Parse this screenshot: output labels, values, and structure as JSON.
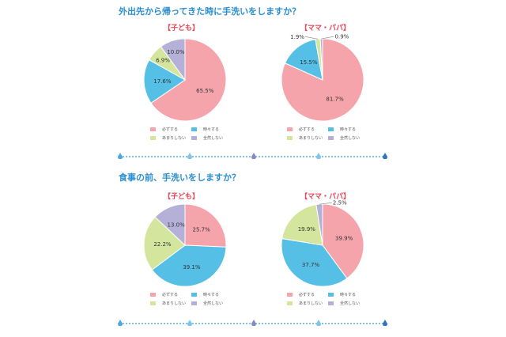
{
  "colors": {
    "always": "#f5a4ab",
    "sometimes": "#56bfe6",
    "rarely": "#d4e59d",
    "never": "#b5b0d8",
    "title": "#2a8fd0",
    "subtitle": "#e4475a"
  },
  "legend": {
    "always": "必ずする",
    "sometimes": "時々する",
    "rarely": "あまりしない",
    "never": "全然しない"
  },
  "chart_data": [
    {
      "type": "pie",
      "title": "外出先から帰ってきた時に手洗いをしますか？",
      "subtitle": "【子ども】",
      "categories": [
        "必ずする",
        "時々する",
        "あまりしない",
        "全然しない"
      ],
      "values": [
        65.5,
        17.6,
        6.9,
        10.0
      ],
      "labels": [
        "65.5%",
        "17.6%",
        "6.9%",
        "10.0%"
      ]
    },
    {
      "type": "pie",
      "title": "外出先から帰ってきた時に手洗いをしますか？",
      "subtitle": "【ママ・パパ】",
      "categories": [
        "必ずする",
        "時々する",
        "あまりしない",
        "全然しない"
      ],
      "values": [
        81.7,
        15.5,
        1.9,
        0.9
      ],
      "labels": [
        "81.7%",
        "15.5%",
        "1.9%",
        "0.9%"
      ]
    },
    {
      "type": "pie",
      "title": "食事の前、手洗いをしますか？",
      "subtitle": "【子ども】",
      "categories": [
        "必ずする",
        "時々する",
        "あまりしない",
        "全然しない"
      ],
      "values": [
        25.7,
        39.1,
        22.2,
        13.0
      ],
      "labels": [
        "25.7%",
        "39.1%",
        "22.2%",
        "13.0%"
      ]
    },
    {
      "type": "pie",
      "title": "食事の前、手洗いをしますか？",
      "subtitle": "【ママ・パパ】",
      "categories": [
        "必ずする",
        "時々する",
        "あまりしない",
        "全然しない"
      ],
      "values": [
        39.9,
        37.7,
        19.9,
        2.5
      ],
      "labels": [
        "39.9%",
        "37.7%",
        "19.9%",
        "2.5%"
      ]
    }
  ]
}
